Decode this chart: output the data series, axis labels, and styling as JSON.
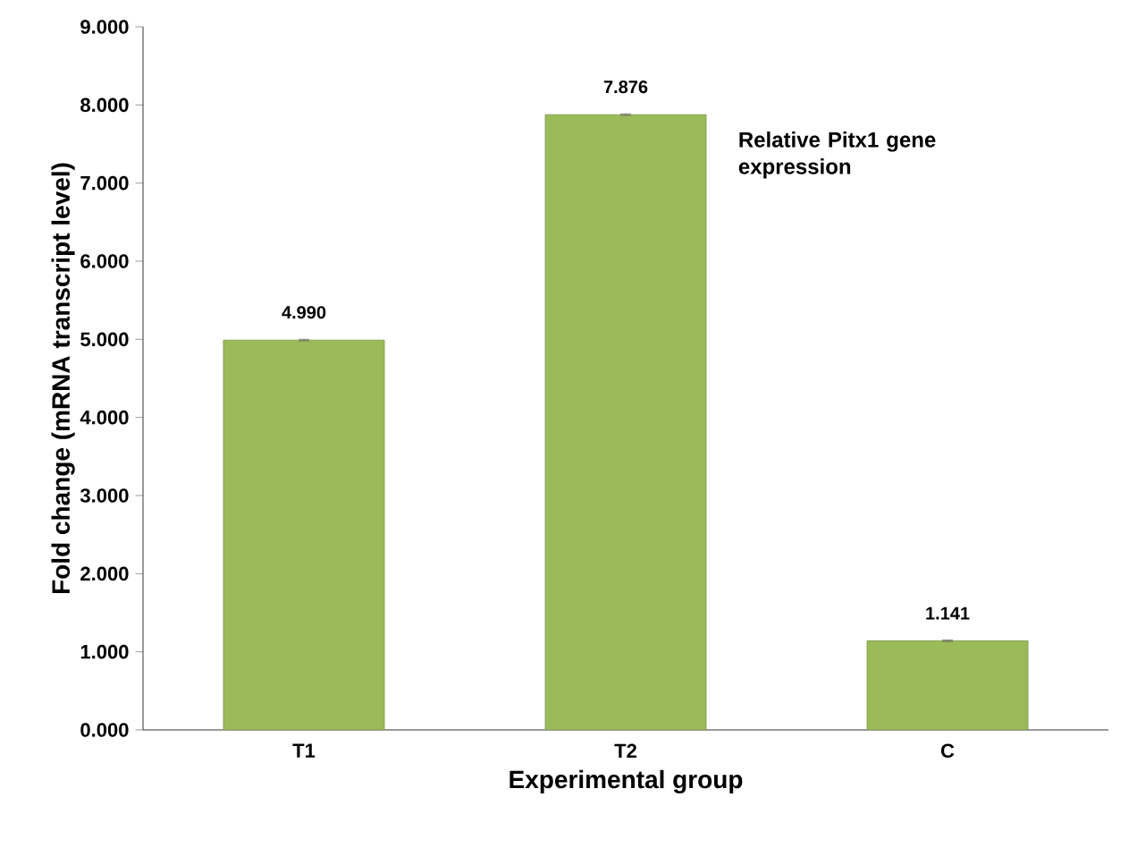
{
  "chart_data": {
    "type": "bar",
    "xlabel": "Experimental group",
    "ylabel": "Fold change (mRNA transcript level)",
    "annotations": [
      "Relative Pitx1 gene expression"
    ],
    "categories": [
      "T1",
      "T2",
      "C"
    ],
    "values": [
      4.99,
      7.876,
      1.141
    ],
    "errors": [
      0.01,
      0.01,
      0.01
    ],
    "value_labels": [
      "4.990",
      "7.876",
      "1.141"
    ],
    "color": "#9bbb59",
    "ylim": [
      0,
      9
    ],
    "yticks": [
      {
        "value": 0,
        "label": "0.000"
      },
      {
        "value": 1,
        "label": "1.000"
      },
      {
        "value": 2,
        "label": "2.000"
      },
      {
        "value": 3,
        "label": "3.000"
      },
      {
        "value": 4,
        "label": "4.000"
      },
      {
        "value": 5,
        "label": "5.000"
      },
      {
        "value": 6,
        "label": "6.000"
      },
      {
        "value": 7,
        "label": "7.000"
      },
      {
        "value": 8,
        "label": "8.000"
      },
      {
        "value": 9,
        "label": "9.000"
      }
    ],
    "grid": false
  }
}
